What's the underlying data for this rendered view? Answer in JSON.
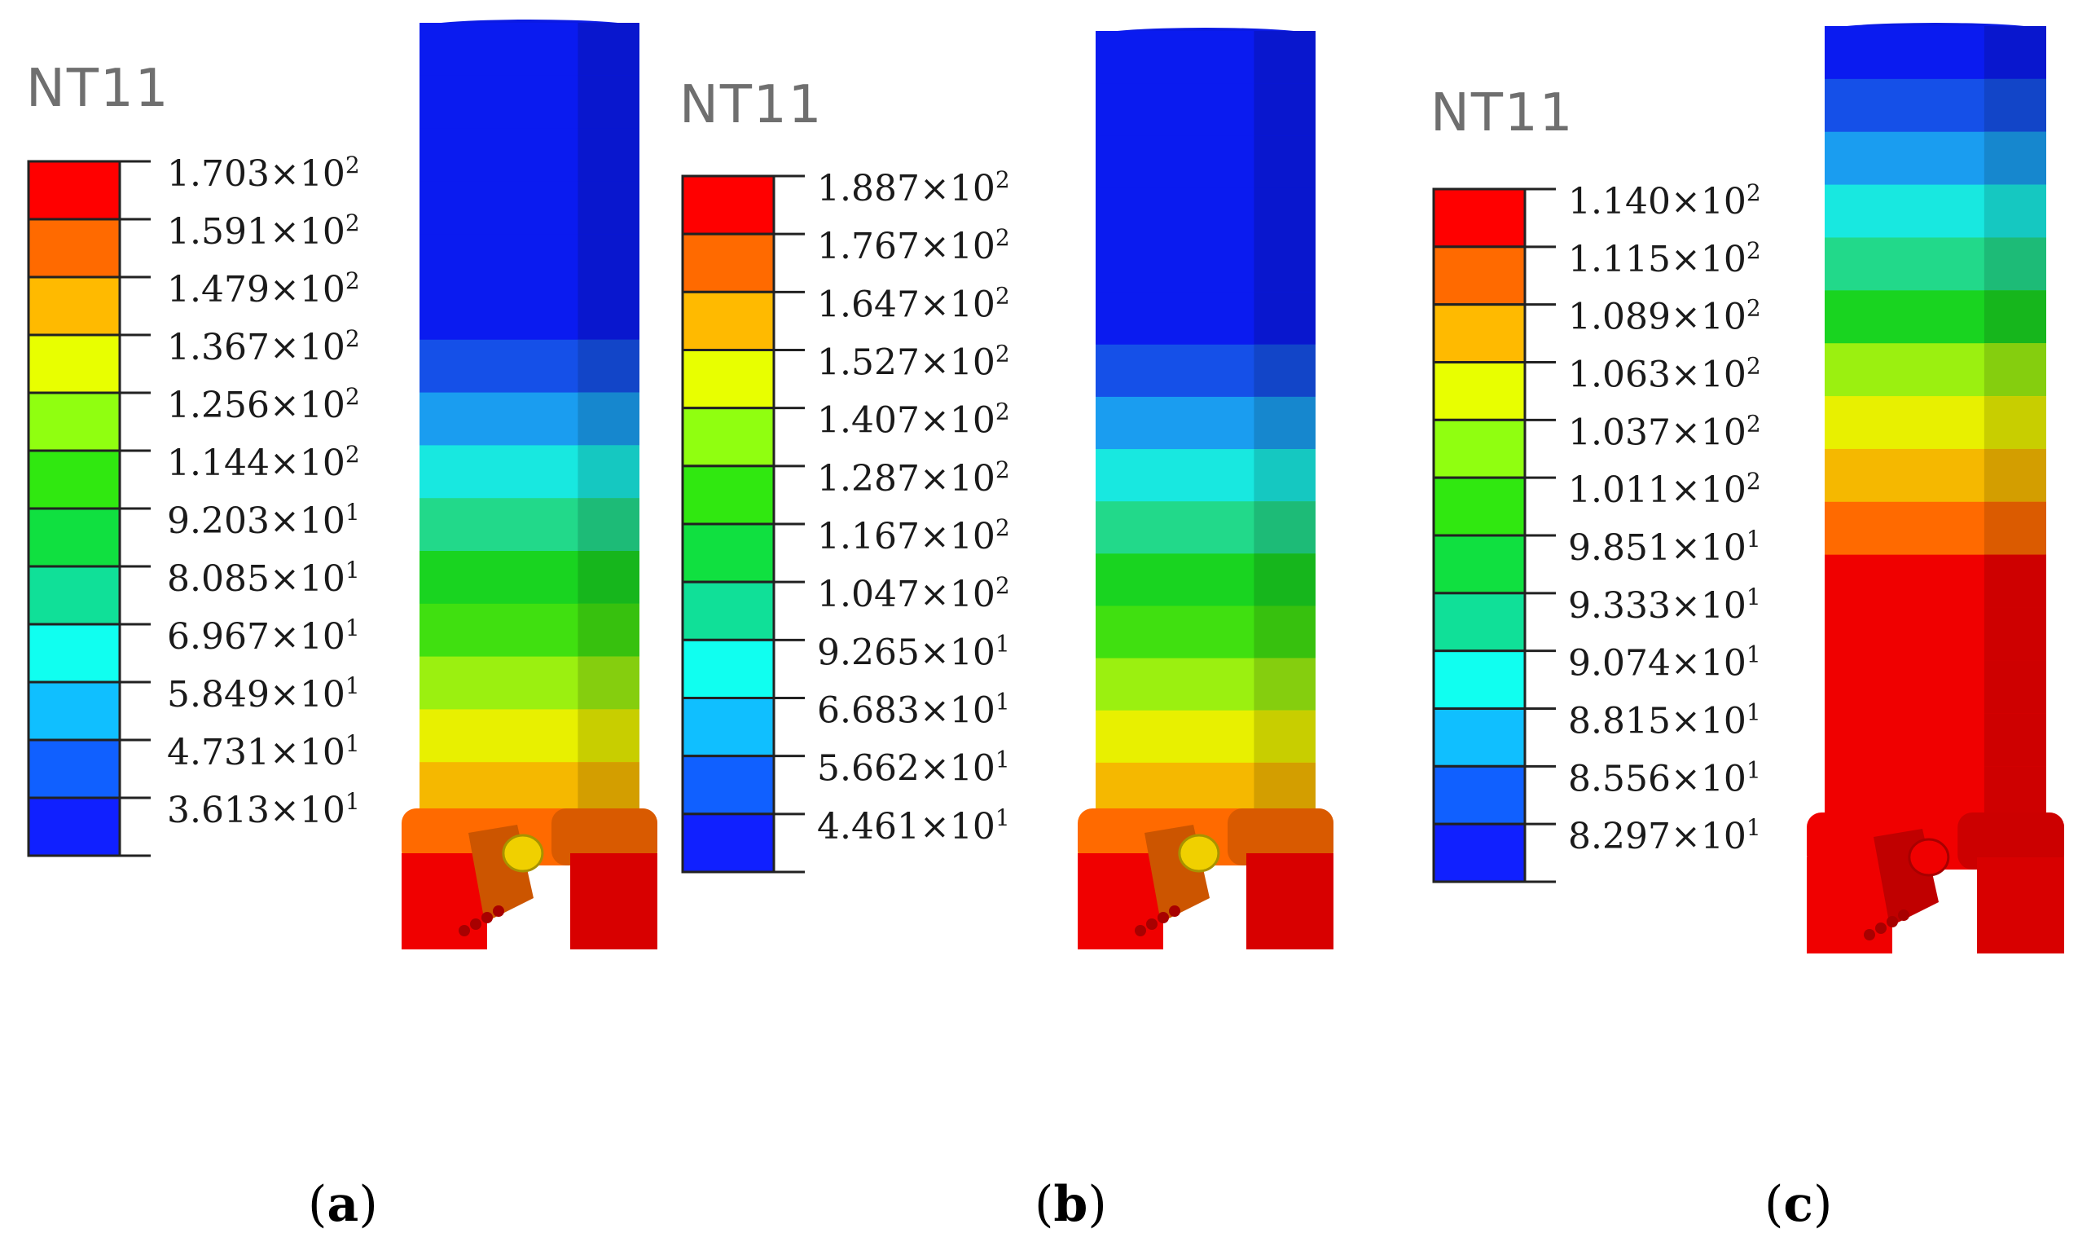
{
  "figure": {
    "panels": [
      {
        "id": "a",
        "panel_label": "a",
        "legend_title": "NT11",
        "legend_values": [
          "1.703",
          "1.591",
          "1.479",
          "1.367",
          "1.256",
          "1.144",
          "9.203",
          "8.085",
          "6.967",
          "5.849",
          "4.731",
          "3.613"
        ],
        "legend_exponents": [
          "2",
          "2",
          "2",
          "2",
          "2",
          "2",
          "1",
          "1",
          "1",
          "1",
          "1",
          "1"
        ],
        "body_bands": [
          "#0a1bf0",
          "#0a1bf0",
          "#0a1bf0",
          "#0a1bf0",
          "#0a1bf0",
          "#0a1bf0",
          "#1550e8",
          "#1a9df0",
          "#18e8e0",
          "#22d98a",
          "#19d420",
          "#40e010",
          "#9bf010",
          "#e8f000",
          "#f5b800"
        ],
        "bit_colors": {
          "shoulder": "#ff6a00",
          "bit": "#f00000",
          "center": "#f0d000"
        }
      },
      {
        "id": "b",
        "panel_label": "b",
        "legend_title": "NT11",
        "legend_values": [
          "1.887",
          "1.767",
          "1.647",
          "1.527",
          "1.407",
          "1.287",
          "1.167",
          "1.047",
          "9.265",
          "6.683",
          "5.662",
          "4.461"
        ],
        "legend_exponents": [
          "2",
          "2",
          "2",
          "2",
          "2",
          "2",
          "2",
          "2",
          "1",
          "1",
          "1",
          "1"
        ],
        "body_bands": [
          "#0a1bf0",
          "#0a1bf0",
          "#0a1bf0",
          "#0a1bf0",
          "#0a1bf0",
          "#0a1bf0",
          "#1550e8",
          "#1a9df0",
          "#18e8e0",
          "#22d98a",
          "#19d420",
          "#40e010",
          "#9bf010",
          "#e8f000",
          "#f5b800"
        ],
        "bit_colors": {
          "shoulder": "#ff6a00",
          "bit": "#f00000",
          "center": "#f0d000"
        }
      },
      {
        "id": "c",
        "panel_label": "c",
        "legend_title": "NT11",
        "legend_values": [
          "1.140",
          "1.115",
          "1.089",
          "1.063",
          "1.037",
          "1.011",
          "9.851",
          "9.333",
          "9.074",
          "8.815",
          "8.556",
          "8.297"
        ],
        "legend_exponents": [
          "2",
          "2",
          "2",
          "2",
          "2",
          "2",
          "1",
          "1",
          "1",
          "1",
          "1",
          "1"
        ],
        "body_bands": [
          "#0a1bf0",
          "#1550e8",
          "#1a9df0",
          "#18e8e0",
          "#22d98a",
          "#19d420",
          "#9bf010",
          "#e8f000",
          "#f5b800",
          "#ff6a00",
          "#f00000",
          "#f00000",
          "#f00000",
          "#f00000",
          "#f00000"
        ],
        "bit_colors": {
          "shoulder": "#f00000",
          "bit": "#f00000",
          "center": "#f00000"
        }
      }
    ],
    "legend_colors": [
      "#ff0000",
      "#ff6a00",
      "#ffba00",
      "#e8ff00",
      "#90ff10",
      "#30e810",
      "#10e040",
      "#10e098",
      "#10fff0",
      "#10bfff",
      "#1060ff",
      "#1020ff"
    ],
    "times_sign": "×",
    "base": "10"
  }
}
